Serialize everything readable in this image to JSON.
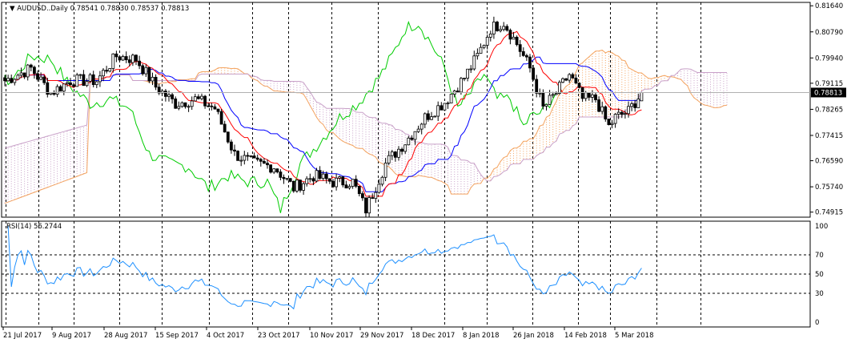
{
  "chart_data": [
    {
      "type": "candlestick",
      "symbol": "AUDUSD..",
      "timeframe": "Daily",
      "title_values": [
        "0.78541",
        "0.78830",
        "0.78537",
        "0.78813"
      ],
      "last_price_label": "0.78813",
      "last_price": 0.78813,
      "ylim": [
        0.7475,
        0.8175
      ],
      "yticks": [
        "0.81640",
        "0.80790",
        "0.79940",
        "0.79115",
        "0.78265",
        "0.77415",
        "0.76590",
        "0.75740",
        "0.74915"
      ],
      "x_dates": [
        "21 Jul 2017",
        "9 Aug 2017",
        "28 Aug 2017",
        "15 Sep 2017",
        "4 Oct 2017",
        "23 Oct 2017",
        "10 Nov 2017",
        "29 Nov 2017",
        "18 Dec 2017",
        "8 Jan 2018",
        "26 Jan 2018",
        "14 Feb 2018",
        "5 Mar 2018"
      ],
      "close_anchors": [
        [
          0,
          0.792
        ],
        [
          8,
          0.796
        ],
        [
          14,
          0.788
        ],
        [
          20,
          0.792
        ],
        [
          28,
          0.792
        ],
        [
          34,
          0.8
        ],
        [
          40,
          0.799
        ],
        [
          46,
          0.79
        ],
        [
          52,
          0.7845
        ],
        [
          58,
          0.786
        ],
        [
          64,
          0.783
        ],
        [
          70,
          0.768
        ],
        [
          76,
          0.765
        ],
        [
          82,
          0.764
        ],
        [
          88,
          0.757
        ],
        [
          94,
          0.761
        ],
        [
          100,
          0.759
        ],
        [
          106,
          0.759
        ],
        [
          110,
          0.75
        ],
        [
          116,
          0.765
        ],
        [
          122,
          0.772
        ],
        [
          128,
          0.78
        ],
        [
          134,
          0.785
        ],
        [
          140,
          0.793
        ],
        [
          144,
          0.8
        ],
        [
          148,
          0.809
        ],
        [
          152,
          0.811
        ],
        [
          156,
          0.804
        ],
        [
          160,
          0.796
        ],
        [
          164,
          0.783
        ],
        [
          168,
          0.788
        ],
        [
          172,
          0.794
        ],
        [
          176,
          0.786
        ],
        [
          180,
          0.786
        ],
        [
          184,
          0.777
        ],
        [
          186,
          0.78
        ],
        [
          190,
          0.782
        ],
        [
          194,
          0.7881
        ]
      ],
      "series": [
        {
          "name": "Tenkan-sen",
          "color": "#ff0000"
        },
        {
          "name": "Kijun-sen",
          "color": "#0000ff"
        },
        {
          "name": "Chikou Span",
          "color": "#00cc00"
        },
        {
          "name": "Senkou Span A",
          "color": "#f4a460"
        },
        {
          "name": "Senkou Span B",
          "color": "#c8a0c8"
        }
      ],
      "grid": true
    },
    {
      "type": "line",
      "indicator": "RSI(14)",
      "value_label": "56.2744",
      "color": "#1e90ff",
      "ylim": [
        0,
        100
      ],
      "yticks": [
        "100",
        "70",
        "50",
        "30",
        "0"
      ],
      "levels": [
        70,
        50,
        30
      ],
      "grid": true
    }
  ]
}
